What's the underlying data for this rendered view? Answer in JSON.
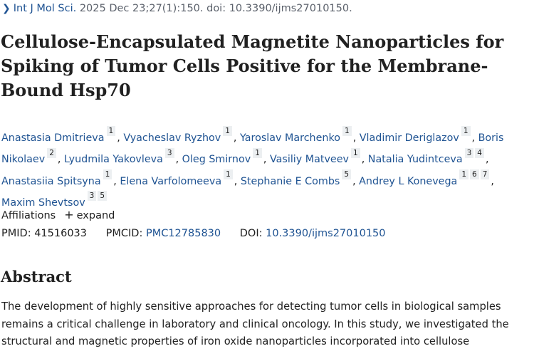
{
  "citation": {
    "journal": "Int J Mol Sci.",
    "details": "2025 Dec 23;27(1):150. doi: 10.3390/ijms27010150."
  },
  "title": "Cellulose-Encapsulated Magnetite Nanoparticles for Spiking of Tumor Cells Positive for the Membrane-Bound Hsp70",
  "authors": [
    {
      "name": "Anastasia Dmitrieva",
      "affiliations": [
        "1"
      ]
    },
    {
      "name": "Vyacheslav Ryzhov",
      "affiliations": [
        "1"
      ]
    },
    {
      "name": "Yaroslav Marchenko",
      "affiliations": [
        "1"
      ]
    },
    {
      "name": "Vladimir Deriglazov",
      "affiliations": [
        "1"
      ]
    },
    {
      "name": "Boris Nikolaev",
      "affiliations": [
        "2"
      ]
    },
    {
      "name": "Lyudmila Yakovleva",
      "affiliations": [
        "3"
      ]
    },
    {
      "name": "Oleg Smirnov",
      "affiliations": [
        "1"
      ]
    },
    {
      "name": "Vasiliy Matveev",
      "affiliations": [
        "1"
      ]
    },
    {
      "name": "Natalia Yudintceva",
      "affiliations": [
        "3",
        "4"
      ]
    },
    {
      "name": "Anastasiia Spitsyna",
      "affiliations": [
        "1"
      ]
    },
    {
      "name": "Elena Varfolomeeva",
      "affiliations": [
        "1"
      ]
    },
    {
      "name": "Stephanie E Combs",
      "affiliations": [
        "5"
      ]
    },
    {
      "name": "Andrey L Konevega",
      "affiliations": [
        "1",
        "6",
        "7"
      ]
    },
    {
      "name": "Maxim Shevtsov",
      "affiliations": [
        "3",
        "5"
      ]
    }
  ],
  "affiliations": {
    "label": "Affiliations",
    "expand_label": "expand"
  },
  "ids": {
    "pmid_label": "PMID:",
    "pmid": "41516033",
    "pmcid_label": "PMCID:",
    "pmcid": "PMC12785830",
    "doi_label": "DOI:",
    "doi": "10.3390/ijms27010150"
  },
  "abstract": {
    "heading": "Abstract",
    "text": "The development of highly sensitive approaches for detecting tumor cells in biological samples remains a critical challenge in laboratory and clinical oncology. In this study, we investigated the structural and magnetic properties of iron oxide nanoparticles incorporated into cellulose"
  },
  "colors": {
    "link": "#205493",
    "text": "#212121",
    "affiliation_badge": "#eceff1"
  }
}
